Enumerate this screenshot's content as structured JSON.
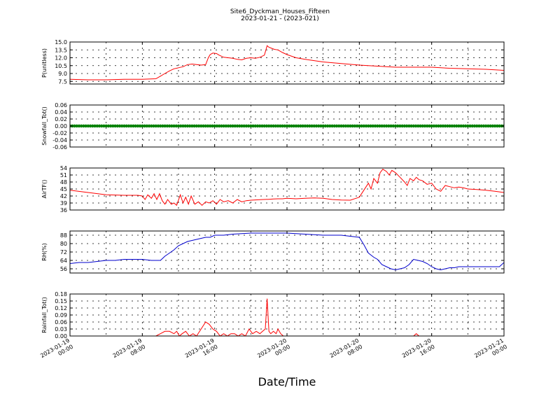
{
  "figure": {
    "title": "Site6_Dyckman_Houses_Fifteen",
    "subtitle": "2023-01-21 - (2023-021)",
    "xlabel": "Date/Time",
    "x_ticks": [
      {
        "t": 0,
        "d": "2023-01-19",
        "h": "00:00"
      },
      {
        "t": 8,
        "d": "2023-01-19",
        "h": "08:00"
      },
      {
        "t": 16,
        "d": "2023-01-19",
        "h": "16:00"
      },
      {
        "t": 24,
        "d": "2023-01-20",
        "h": "00:00"
      },
      {
        "t": 32,
        "d": "2023-01-20",
        "h": "08:00"
      },
      {
        "t": 40,
        "d": "2023-01-20",
        "h": "16:00"
      },
      {
        "t": 48,
        "d": "2023-01-21",
        "h": "00:00"
      }
    ]
  },
  "chart_data": [
    {
      "type": "line",
      "ylabel": "P(unitless)",
      "ylim": [
        7.0,
        15.0
      ],
      "yticks": [
        7.5,
        9.0,
        10.5,
        12.0,
        13.5,
        15.0
      ],
      "grid": true,
      "series": [
        {
          "color": "#ff0000",
          "x": [
            0,
            2,
            4,
            6,
            8,
            9.5,
            10,
            10.5,
            11,
            11.5,
            12,
            12.5,
            13,
            13.5,
            14,
            14.5,
            15,
            15.3,
            15.5,
            15.8,
            16.2,
            16.5,
            17,
            17.5,
            18,
            18.5,
            19,
            19.5,
            20,
            20.5,
            21,
            21.5,
            21.8,
            22,
            22.3,
            22.6,
            23,
            23.5,
            24,
            25,
            26,
            28,
            30,
            32,
            34,
            36,
            38,
            40,
            42,
            44,
            46,
            48
          ],
          "y": [
            7.9,
            7.8,
            7.8,
            7.9,
            7.9,
            8.0,
            8.5,
            9.0,
            9.5,
            9.9,
            10.1,
            10.3,
            10.7,
            10.8,
            10.7,
            10.6,
            10.7,
            12.0,
            12.6,
            12.9,
            12.8,
            12.5,
            12.1,
            12.0,
            11.9,
            11.7,
            11.6,
            11.9,
            12.0,
            11.9,
            12.1,
            12.5,
            14.3,
            14.0,
            13.8,
            13.6,
            13.5,
            13.0,
            12.6,
            12.0,
            11.7,
            11.2,
            10.9,
            10.6,
            10.4,
            10.2,
            10.2,
            10.2,
            10.0,
            9.9,
            9.8,
            9.6
          ]
        }
      ]
    },
    {
      "type": "scatter",
      "ylabel": "Snowfall_Tot()",
      "ylim": [
        -0.06,
        0.06
      ],
      "yticks": [
        -0.06,
        -0.04,
        -0.02,
        0.0,
        0.02,
        0.04,
        0.06
      ],
      "grid": true,
      "series": [
        {
          "color": "#008000",
          "x_start": 0,
          "x_end": 48,
          "value": 0.0
        }
      ]
    },
    {
      "type": "line",
      "ylabel": "AirTF()",
      "ylim": [
        36,
        54
      ],
      "yticks": [
        36,
        39,
        42,
        45,
        48,
        51,
        54
      ],
      "grid": true,
      "series": [
        {
          "color": "#ff0000",
          "x": [
            0,
            2,
            4,
            6,
            7.5,
            8,
            8.3,
            8.6,
            9,
            9.3,
            9.6,
            9.9,
            10.2,
            10.5,
            10.8,
            11.2,
            11.5,
            11.8,
            12.2,
            12.5,
            12.8,
            13.1,
            13.4,
            13.8,
            14.2,
            14.6,
            15,
            15.4,
            15.8,
            16.2,
            16.6,
            17,
            17.5,
            18,
            18.5,
            19,
            19.5,
            20,
            21,
            22,
            22.5,
            23,
            23.5,
            24,
            25,
            26,
            27,
            28,
            29,
            30,
            31,
            32,
            32.5,
            33,
            33.3,
            33.6,
            34,
            34.3,
            34.6,
            35,
            35.3,
            35.6,
            36,
            36.5,
            37,
            37.3,
            37.6,
            38,
            38.3,
            38.6,
            39,
            39.5,
            40,
            40.5,
            41,
            41.5,
            42,
            42.5,
            43,
            43.5,
            44,
            45,
            46,
            47,
            48
          ],
          "y": [
            44.5,
            43.5,
            42.5,
            42.3,
            42.3,
            42.0,
            40.5,
            42.5,
            41.0,
            43.0,
            40.5,
            43.0,
            40.0,
            38.5,
            40.5,
            38.5,
            39.0,
            38.0,
            42.5,
            39.0,
            41.5,
            38.5,
            42.0,
            38.5,
            39.5,
            38.0,
            39.5,
            39.0,
            40.0,
            38.5,
            40.5,
            39.5,
            40.0,
            39.0,
            40.5,
            39.5,
            40.0,
            40.2,
            40.4,
            40.6,
            40.7,
            40.8,
            40.8,
            41.0,
            40.8,
            41.0,
            41.2,
            41.0,
            40.5,
            40.3,
            40.2,
            41.5,
            44.5,
            47.5,
            45.0,
            49.5,
            47.5,
            52.0,
            53.5,
            52.5,
            51.0,
            53.0,
            52.0,
            50.0,
            48.0,
            46.5,
            49.5,
            48.5,
            50.0,
            49.0,
            48.5,
            47.0,
            47.5,
            45.0,
            44.0,
            46.5,
            46.0,
            45.5,
            45.8,
            45.5,
            45.0,
            44.8,
            44.5,
            44.0,
            43.5
          ]
        }
      ]
    },
    {
      "type": "line",
      "ylabel": "RH(%)",
      "ylim": [
        52,
        92
      ],
      "yticks": [
        56,
        64,
        72,
        80,
        88
      ],
      "grid": true,
      "series": [
        {
          "color": "#0000cc",
          "x": [
            0,
            1,
            2,
            3,
            4,
            5,
            6,
            7,
            8,
            9,
            10,
            10.5,
            11,
            11.5,
            12,
            12.5,
            13,
            13.5,
            14,
            14.5,
            15,
            15.5,
            16,
            16.5,
            17,
            18,
            20,
            22,
            24,
            26,
            28,
            30,
            31,
            32,
            32.5,
            33,
            33.3,
            33.6,
            34,
            34.5,
            35,
            35.5,
            36,
            36.5,
            37,
            37.5,
            38,
            38.5,
            39,
            39.5,
            40,
            40.5,
            41,
            41.5,
            42,
            42.5,
            43,
            43.5,
            44,
            45,
            46,
            47,
            47.5,
            48
          ],
          "y": [
            61,
            62,
            62,
            63,
            64,
            64,
            65,
            65,
            65,
            64,
            64,
            68,
            71,
            74,
            78,
            80,
            82,
            83,
            84,
            85,
            86,
            86,
            88,
            88,
            88,
            89,
            90,
            90,
            90,
            89,
            88,
            88,
            87,
            86,
            79,
            71,
            69,
            67,
            65,
            60,
            58,
            56,
            55,
            56,
            57,
            60,
            65,
            64,
            63,
            61,
            58,
            56,
            55,
            56,
            57,
            57,
            58,
            58,
            58,
            58,
            58,
            58,
            58,
            62
          ]
        }
      ]
    },
    {
      "type": "line",
      "ylabel": "Rainfall_Tot()",
      "ylim": [
        0.0,
        0.18
      ],
      "yticks": [
        0.0,
        0.03,
        0.06,
        0.09,
        0.12,
        0.15,
        0.18
      ],
      "grid": true,
      "series": [
        {
          "color": "#ff0000",
          "x": [
            0,
            9.5,
            10,
            10.5,
            11,
            11.5,
            11.8,
            12.1,
            12.4,
            12.8,
            13.2,
            13.6,
            14,
            14.5,
            15,
            15.4,
            15.8,
            16.2,
            16.6,
            17,
            17.4,
            17.8,
            18.2,
            18.6,
            19,
            19.4,
            19.8,
            20.2,
            20.6,
            21,
            21.3,
            21.6,
            21.8,
            22,
            22.2,
            22.5,
            22.8,
            23,
            23.3,
            23.6,
            24,
            38,
            38.3,
            38.6,
            39,
            48
          ],
          "y": [
            0.0,
            0.0,
            0.01,
            0.02,
            0.02,
            0.01,
            0.02,
            0.0,
            0.01,
            0.02,
            0.0,
            0.01,
            0.0,
            0.03,
            0.06,
            0.05,
            0.03,
            0.02,
            0.0,
            0.01,
            0.0,
            0.01,
            0.01,
            0.0,
            0.01,
            0.0,
            0.03,
            0.01,
            0.02,
            0.01,
            0.02,
            0.03,
            0.16,
            0.02,
            0.01,
            0.02,
            0.01,
            0.03,
            0.01,
            0.0,
            0.0,
            0.0,
            0.01,
            0.0,
            0.0,
            0.0
          ]
        }
      ]
    }
  ]
}
